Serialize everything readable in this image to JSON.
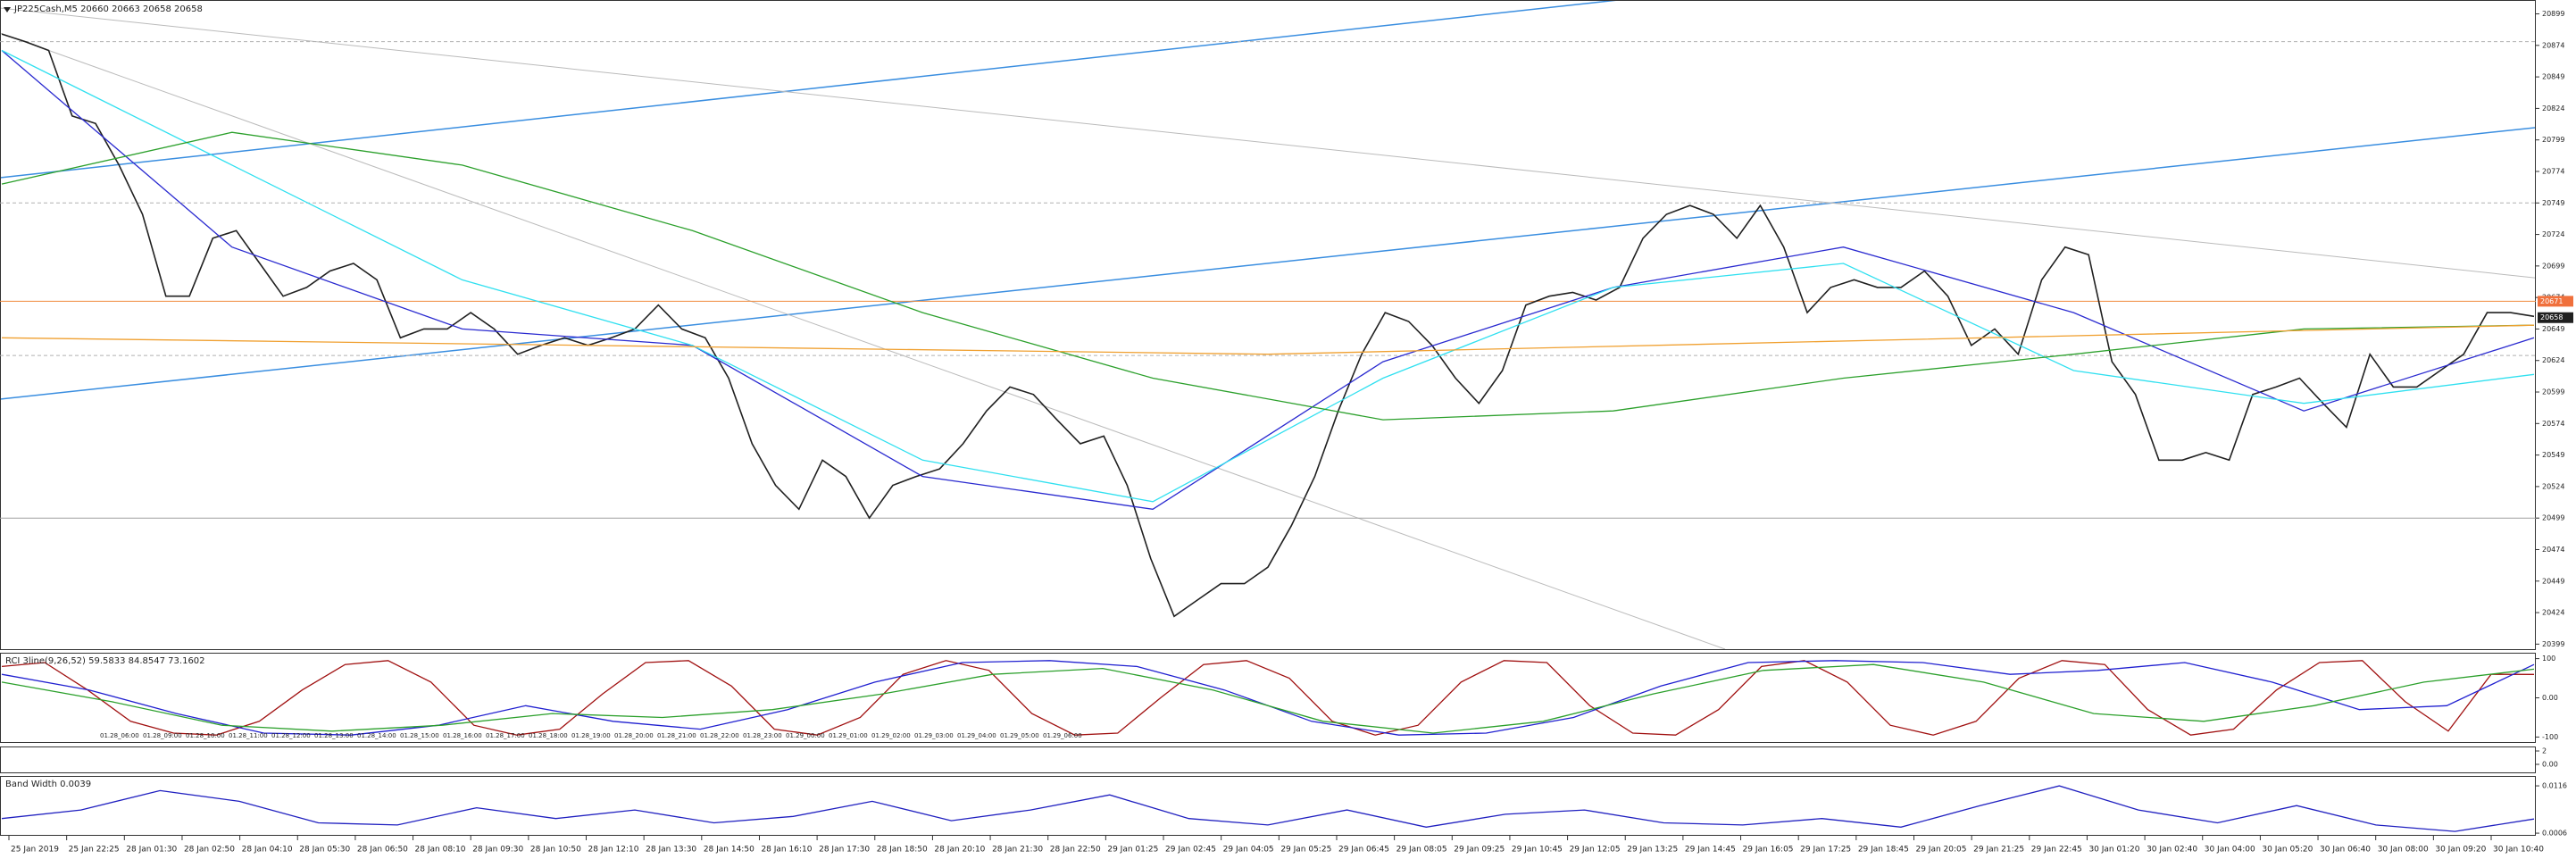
{
  "chart_data": [
    {
      "type": "line",
      "title": "JP225Cash,M5 20660 20663 20658 20658",
      "ylim": [
        20395,
        20910
      ],
      "yticks": [
        20399,
        20424,
        20449,
        20474,
        20499,
        20524,
        20549,
        20574,
        20599,
        20624,
        20649,
        20674,
        20699,
        20724,
        20749,
        20774,
        20799,
        20824,
        20849,
        20874,
        20899
      ],
      "hlines": [
        {
          "value": 20877,
          "style": "dash",
          "color": "#b0b0b0"
        },
        {
          "value": 20749,
          "style": "dash",
          "color": "#b0b0b0"
        },
        {
          "value": 20628,
          "style": "dash",
          "color": "#b0b0b0"
        },
        {
          "value": 20499,
          "style": "solid",
          "color": "#a0a0a0"
        },
        {
          "value": 20671,
          "style": "solid",
          "color": "#f08a3c"
        }
      ],
      "price_labels": [
        {
          "value": 20671,
          "color": "#f0703c"
        },
        {
          "value": 20658,
          "color": "#202020"
        }
      ],
      "series": [
        {
          "color": "#202020",
          "values": [
            20883,
            20877,
            20870,
            20818,
            20812,
            20779,
            20740,
            20675,
            20675,
            20721,
            20727,
            20701,
            20675,
            20682,
            20695,
            20701,
            20688,
            20642,
            20649,
            20649,
            20662,
            20649,
            20629,
            20636,
            20642,
            20636,
            20642,
            20649,
            20668,
            20649,
            20642,
            20610,
            20558,
            20525,
            20506,
            20545,
            20532,
            20499,
            20525,
            20532,
            20538,
            20558,
            20584,
            20603,
            20597,
            20577,
            20558,
            20564,
            20525,
            20467,
            20421,
            20434,
            20447,
            20447,
            20460,
            20493,
            20532,
            20584,
            20629,
            20662,
            20655,
            20636,
            20610,
            20590,
            20616,
            20668,
            20675,
            20678,
            20672,
            20682,
            20721,
            20740,
            20747,
            20740,
            20721,
            20747,
            20714,
            20662,
            20682,
            20688,
            20682,
            20682,
            20695,
            20675,
            20636,
            20649,
            20629,
            20688,
            20714,
            20708,
            20623,
            20597,
            20545,
            20545,
            20551,
            20545,
            20597,
            20603,
            20610,
            20590,
            20571,
            20629,
            20603,
            20603,
            20616,
            20629,
            20662,
            20662,
            20659
          ]
        },
        {
          "color": "#2a2ad0",
          "values": [
            20870,
            20714,
            20649,
            20636,
            20532,
            20506,
            20623,
            20682,
            20714,
            20662,
            20584,
            20642
          ]
        },
        {
          "color": "#30e0f0",
          "values": [
            20870,
            20779,
            20688,
            20636,
            20545,
            20512,
            20610,
            20682,
            20701,
            20616,
            20590,
            20613
          ]
        },
        {
          "color": "#2ca02c",
          "values": [
            20764,
            20805,
            20779,
            20727,
            20662,
            20610,
            20577,
            20584,
            20610,
            20629,
            20649,
            20652
          ]
        },
        {
          "color": "#f0a030",
          "values": [
            20642,
            20629,
            20652
          ]
        }
      ]
    },
    {
      "type": "line",
      "title": "RCI 3line(9,26,52) 59.5833 84.8547 73.1602",
      "ylim": [
        -115,
        115
      ],
      "yticks": [
        -100,
        {
          "value": 0,
          "label": "0.00"
        },
        100
      ],
      "time_labels": [
        "01.28_06:00",
        "01.28_09:00",
        "01.28_10:00",
        "01.28_11:00",
        "01.28_12:00",
        "01.28_13:00",
        "01.28_14:00",
        "01.28_15:00",
        "01.28_16:00",
        "01.28_17:00",
        "01.28_18:00",
        "01.28_19:00",
        "01.28_20:00",
        "01.28_21:00",
        "01.28_22:00",
        "01.28_23:00",
        "01.29_00:00",
        "01.29_01:00",
        "01.29_02:00",
        "01.29_03:00",
        "01.29_04:00",
        "01.29_05:00",
        "01.29_06:00"
      ],
      "series": [
        {
          "color": "#a01010",
          "values": [
            80,
            90,
            20,
            -60,
            -90,
            -95,
            -60,
            20,
            85,
            95,
            40,
            -70,
            -95,
            -80,
            10,
            90,
            95,
            30,
            -80,
            -95,
            -50,
            60,
            95,
            70,
            -40,
            -95,
            -90,
            0,
            85,
            95,
            50,
            -60,
            -95,
            -70,
            40,
            95,
            90,
            -20,
            -90,
            -95,
            -30,
            80,
            95,
            40,
            -70,
            -95,
            -60,
            50,
            95,
            85,
            -30,
            -95,
            -80,
            20,
            90,
            95,
            -10,
            -85,
            60,
            59.5833
          ]
        },
        {
          "color": "#2020d0",
          "values": [
            60,
            20,
            -40,
            -90,
            -95,
            -70,
            -20,
            -60,
            -80,
            -30,
            40,
            90,
            95,
            80,
            20,
            -60,
            -95,
            -90,
            -50,
            30,
            90,
            95,
            90,
            60,
            70,
            90,
            40,
            -30,
            -20,
            84.8547
          ]
        },
        {
          "color": "#2ca02c",
          "values": [
            40,
            -10,
            -70,
            -85,
            -70,
            -40,
            -50,
            -30,
            10,
            60,
            75,
            20,
            -60,
            -90,
            -60,
            10,
            70,
            85,
            40,
            -40,
            -60,
            -20,
            40,
            73.1602
          ]
        }
      ]
    },
    {
      "type": "line",
      "ylim": [
        -1.2,
        2.67
      ],
      "yticks": [
        {
          "value": 0,
          "label": "0.00"
        },
        2
      ],
      "series": []
    },
    {
      "type": "line",
      "title": "Band Width 0.0039",
      "ylim": [
        0.0002,
        0.0139
      ],
      "yticks": [
        0.0006,
        0.0116
      ],
      "series": [
        {
          "color": "#2020c0",
          "values": [
            0.004,
            0.006,
            0.0105,
            0.008,
            0.003,
            0.0025,
            0.0065,
            0.004,
            0.006,
            0.003,
            0.0045,
            0.008,
            0.0035,
            0.006,
            0.0095,
            0.004,
            0.0025,
            0.006,
            0.002,
            0.005,
            0.006,
            0.003,
            0.0025,
            0.004,
            0.002,
            0.007,
            0.0116,
            0.006,
            0.003,
            0.007,
            0.0025,
            0.001,
            0.0039
          ]
        }
      ]
    }
  ],
  "time_axis": [
    "25 Jan 2019",
    "25 Jan 22:25",
    "28 Jan 01:30",
    "28 Jan 02:50",
    "28 Jan 04:10",
    "28 Jan 05:30",
    "28 Jan 06:50",
    "28 Jan 08:10",
    "28 Jan 09:30",
    "28 Jan 10:50",
    "28 Jan 12:10",
    "28 Jan 13:30",
    "28 Jan 14:50",
    "28 Jan 16:10",
    "28 Jan 17:30",
    "28 Jan 18:50",
    "28 Jan 20:10",
    "28 Jan 21:30",
    "28 Jan 22:50",
    "29 Jan 01:25",
    "29 Jan 02:45",
    "29 Jan 04:05",
    "29 Jan 05:25",
    "29 Jan 06:45",
    "29 Jan 08:05",
    "29 Jan 09:25",
    "29 Jan 10:45",
    "29 Jan 12:05",
    "29 Jan 13:25",
    "29 Jan 14:45",
    "29 Jan 16:05",
    "29 Jan 17:25",
    "29 Jan 18:45",
    "29 Jan 20:05",
    "29 Jan 21:25",
    "29 Jan 22:45",
    "30 Jan 01:20",
    "30 Jan 02:40",
    "30 Jan 04:00",
    "30 Jan 05:20",
    "30 Jan 06:40",
    "30 Jan 08:00",
    "30 Jan 09:20",
    "30 Jan 10:40"
  ]
}
